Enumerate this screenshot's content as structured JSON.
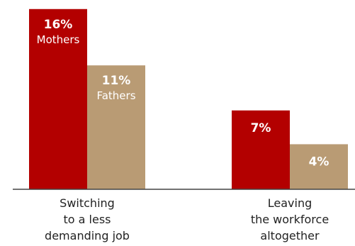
{
  "chart_data": {
    "type": "bar",
    "categories": [
      [
        "Switching",
        "to a less",
        "demanding job"
      ],
      [
        "Leaving",
        "the workforce",
        "altogether"
      ]
    ],
    "series": [
      {
        "name": "Mothers",
        "color": "#b30000",
        "values": [
          16,
          7
        ],
        "value_labels": [
          "16%",
          "7%"
        ]
      },
      {
        "name": "Fathers",
        "color": "#b99b74",
        "values": [
          11,
          4
        ],
        "value_labels": [
          "11%",
          "4%"
        ]
      }
    ],
    "ylim": [
      0,
      16.3
    ],
    "grid": false,
    "legend": "inside-bars"
  }
}
